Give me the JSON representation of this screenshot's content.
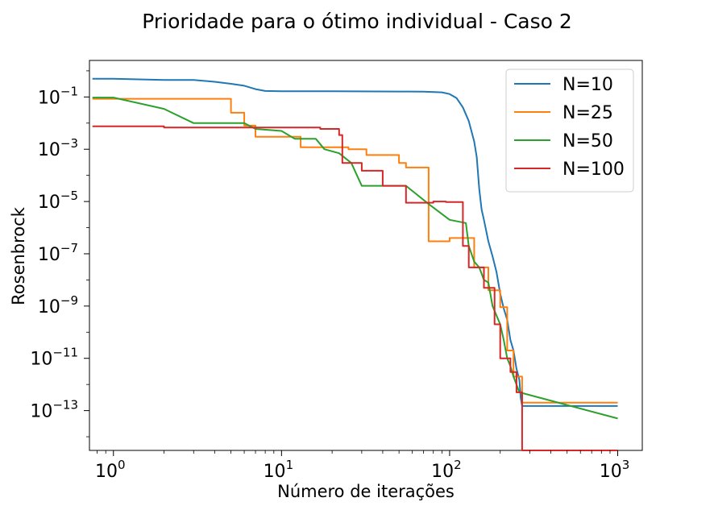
{
  "chart_data": {
    "type": "line",
    "title": "Prioridade para o ótimo individual - Caso 2",
    "xlabel": "Número de iterações",
    "ylabel": "Rosenbrock",
    "xscale": "log",
    "yscale": "log",
    "xlim": [
      0.72,
      1400
    ],
    "ylim": [
      3e-15,
      2.5
    ],
    "legend_position": "top-right",
    "grid": false,
    "x_ticks": [
      {
        "base": "10",
        "exp": "0",
        "value": 1
      },
      {
        "base": "10",
        "exp": "1",
        "value": 10
      },
      {
        "base": "10",
        "exp": "2",
        "value": 100
      },
      {
        "base": "10",
        "exp": "3",
        "value": 1000
      }
    ],
    "y_ticks": [
      {
        "base": "10",
        "exp": "−1",
        "value": 0.1
      },
      {
        "base": "10",
        "exp": "−3",
        "value": 0.001
      },
      {
        "base": "10",
        "exp": "−5",
        "value": 1e-05
      },
      {
        "base": "10",
        "exp": "−7",
        "value": 1e-07
      },
      {
        "base": "10",
        "exp": "−9",
        "value": 1e-09
      },
      {
        "base": "10",
        "exp": "−11",
        "value": 1e-11
      },
      {
        "base": "10",
        "exp": "−13",
        "value": 1e-13
      }
    ],
    "series": [
      {
        "name": "N=10",
        "color": "#1f77b4",
        "step": false,
        "points": [
          [
            0.75,
            0.5
          ],
          [
            1,
            0.5
          ],
          [
            2,
            0.45
          ],
          [
            3,
            0.45
          ],
          [
            4,
            0.38
          ],
          [
            5,
            0.32
          ],
          [
            6,
            0.27
          ],
          [
            7,
            0.2
          ],
          [
            8,
            0.17
          ],
          [
            10,
            0.165
          ],
          [
            20,
            0.165
          ],
          [
            50,
            0.162
          ],
          [
            70,
            0.16
          ],
          [
            90,
            0.15
          ],
          [
            100,
            0.13
          ],
          [
            110,
            0.09
          ],
          [
            120,
            0.04
          ],
          [
            130,
            0.012
          ],
          [
            140,
            0.002
          ],
          [
            145,
            0.0005
          ],
          [
            150,
            3e-05
          ],
          [
            155,
            5e-06
          ],
          [
            160,
            2e-06
          ],
          [
            170,
            3e-07
          ],
          [
            180,
            8e-08
          ],
          [
            190,
            2e-08
          ],
          [
            200,
            3e-09
          ],
          [
            210,
            8e-10
          ],
          [
            220,
            3e-10
          ],
          [
            230,
            5e-11
          ],
          [
            240,
            2e-11
          ],
          [
            250,
            4e-12
          ],
          [
            260,
            1.5e-12
          ],
          [
            265,
            3e-13
          ],
          [
            270,
            1.5e-13
          ],
          [
            1000,
            1.5e-13
          ]
        ]
      },
      {
        "name": "N=25",
        "color": "#ff7f0e",
        "step": true,
        "points": [
          [
            0.75,
            0.085
          ],
          [
            4,
            0.085
          ],
          [
            5,
            0.025
          ],
          [
            6,
            0.008
          ],
          [
            7,
            0.003
          ],
          [
            13,
            0.0012
          ],
          [
            25,
            0.001
          ],
          [
            32,
            0.0006
          ],
          [
            50,
            0.0003
          ],
          [
            55,
            0.0002
          ],
          [
            75,
            3e-07
          ],
          [
            100,
            4e-07
          ],
          [
            140,
            3e-08
          ],
          [
            170,
            4e-09
          ],
          [
            200,
            9e-10
          ],
          [
            220,
            2e-11
          ],
          [
            240,
            2e-12
          ],
          [
            270,
            2e-13
          ],
          [
            1000,
            2e-13
          ]
        ]
      },
      {
        "name": "N=50",
        "color": "#2ca02c",
        "step": false,
        "points": [
          [
            0.75,
            0.095
          ],
          [
            1,
            0.095
          ],
          [
            2,
            0.035
          ],
          [
            3,
            0.01
          ],
          [
            6,
            0.01
          ],
          [
            7,
            0.006
          ],
          [
            10,
            0.005
          ],
          [
            12,
            0.0025
          ],
          [
            16,
            0.0025
          ],
          [
            18,
            0.001
          ],
          [
            22,
            0.0007
          ],
          [
            26,
            0.0003
          ],
          [
            30,
            4e-05
          ],
          [
            55,
            4e-05
          ],
          [
            75,
            8e-06
          ],
          [
            100,
            2e-06
          ],
          [
            125,
            1.5e-06
          ],
          [
            130,
            2e-07
          ],
          [
            140,
            5e-08
          ],
          [
            150,
            3e-08
          ],
          [
            160,
            1e-08
          ],
          [
            170,
            8e-09
          ],
          [
            180,
            1e-09
          ],
          [
            200,
            2e-10
          ],
          [
            210,
            5e-11
          ],
          [
            220,
            1e-11
          ],
          [
            230,
            5e-12
          ],
          [
            240,
            2e-12
          ],
          [
            260,
            5e-13
          ],
          [
            1000,
            5e-14
          ]
        ]
      },
      {
        "name": "N=100",
        "color": "#d62728",
        "step": true,
        "points": [
          [
            0.75,
            0.0075
          ],
          [
            1,
            0.0075
          ],
          [
            2,
            0.0068
          ],
          [
            10,
            0.0068
          ],
          [
            17,
            0.006
          ],
          [
            22,
            0.0035
          ],
          [
            23,
            0.0003
          ],
          [
            30,
            0.00015
          ],
          [
            40,
            4e-05
          ],
          [
            55,
            9e-06
          ],
          [
            80,
            1e-05
          ],
          [
            95,
            9.5e-06
          ],
          [
            120,
            2e-07
          ],
          [
            130,
            3e-08
          ],
          [
            160,
            5e-09
          ],
          [
            185,
            2e-10
          ],
          [
            200,
            1e-11
          ],
          [
            230,
            3e-12
          ],
          [
            250,
            5e-13
          ],
          [
            270,
            2.5e-15
          ],
          [
            1000,
            2.5e-15
          ]
        ]
      }
    ]
  }
}
